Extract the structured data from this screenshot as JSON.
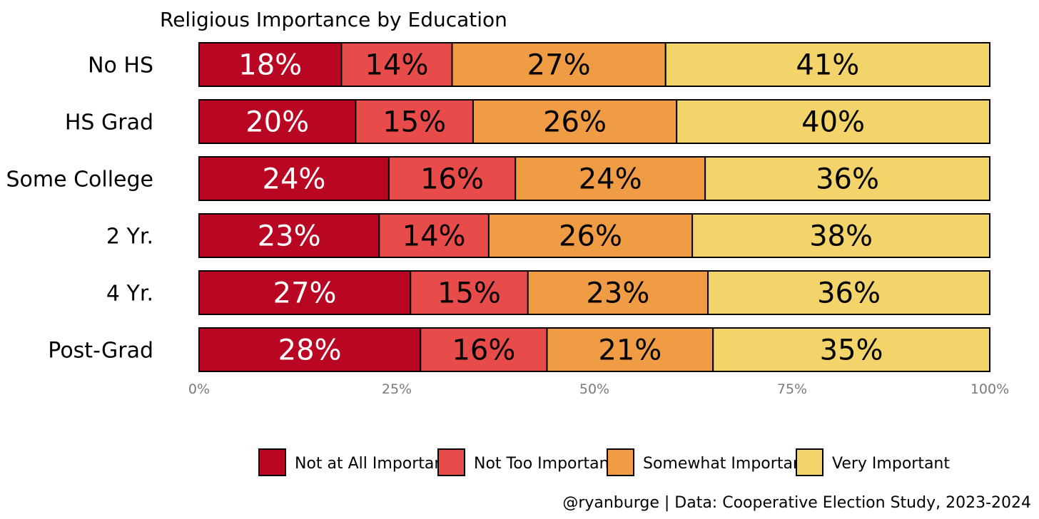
{
  "chart_data": {
    "type": "bar",
    "orientation": "horizontal",
    "stacked": true,
    "title": "Religious Importance by Education",
    "caption": "@ryanburge | Data: Cooperative Election Study, 2023-2024",
    "categories": [
      "No HS",
      "HS Grad",
      "Some College",
      "2 Yr.",
      "4 Yr.",
      "Post-Grad"
    ],
    "series": [
      {
        "name": "Not at All Important",
        "color": "#b80623",
        "label_color": "#ffffff",
        "values": [
          18,
          20,
          24,
          23,
          27,
          28
        ]
      },
      {
        "name": "Not Too Important",
        "color": "#e84c4a",
        "label_color": "#000000",
        "values": [
          14,
          15,
          16,
          14,
          15,
          16
        ]
      },
      {
        "name": "Somewhat Important",
        "color": "#f09c44",
        "label_color": "#000000",
        "values": [
          27,
          26,
          24,
          26,
          23,
          21
        ]
      },
      {
        "name": "Very Important",
        "color": "#f2d46b",
        "label_color": "#000000",
        "values": [
          41,
          40,
          36,
          38,
          36,
          35
        ]
      }
    ],
    "data_labels": [
      [
        "18%",
        "14%",
        "27%",
        "41%"
      ],
      [
        "20%",
        "15%",
        "26%",
        "40%"
      ],
      [
        "24%",
        "16%",
        "24%",
        "36%"
      ],
      [
        "23%",
        "14%",
        "26%",
        "38%"
      ],
      [
        "27%",
        "15%",
        "23%",
        "36%"
      ],
      [
        "28%",
        "16%",
        "21%",
        "35%"
      ]
    ],
    "xlim": [
      0,
      100
    ],
    "xticks": [
      0,
      25,
      50,
      75,
      100
    ],
    "xtick_labels": [
      "0%",
      "25%",
      "50%",
      "75%",
      "100%"
    ],
    "legend_position": "bottom"
  }
}
